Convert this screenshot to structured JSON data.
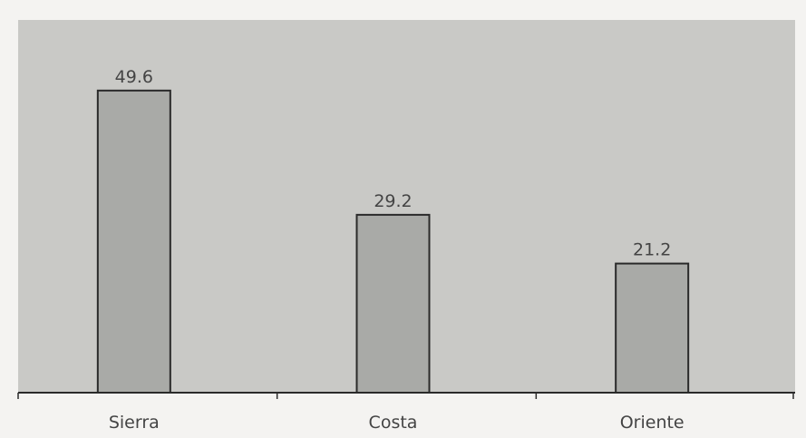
{
  "chart_data": {
    "type": "bar",
    "categories": [
      "Sierra",
      "Costa",
      "Oriente"
    ],
    "values": [
      49.6,
      29.2,
      21.2
    ],
    "data_labels": [
      "49.6",
      "29.2",
      "21.2"
    ],
    "title": "",
    "xlabel": "",
    "ylabel": "",
    "ylim": [
      0,
      60
    ],
    "grid": false,
    "legend": "none",
    "colors": {
      "page_background": "#f4f3f1",
      "plot_background": "#c9c9c6",
      "bar_fill": "#a9aaa7",
      "bar_stroke": "#2a2a2a",
      "axis": "#2a2a2a",
      "text": "#444444"
    }
  }
}
